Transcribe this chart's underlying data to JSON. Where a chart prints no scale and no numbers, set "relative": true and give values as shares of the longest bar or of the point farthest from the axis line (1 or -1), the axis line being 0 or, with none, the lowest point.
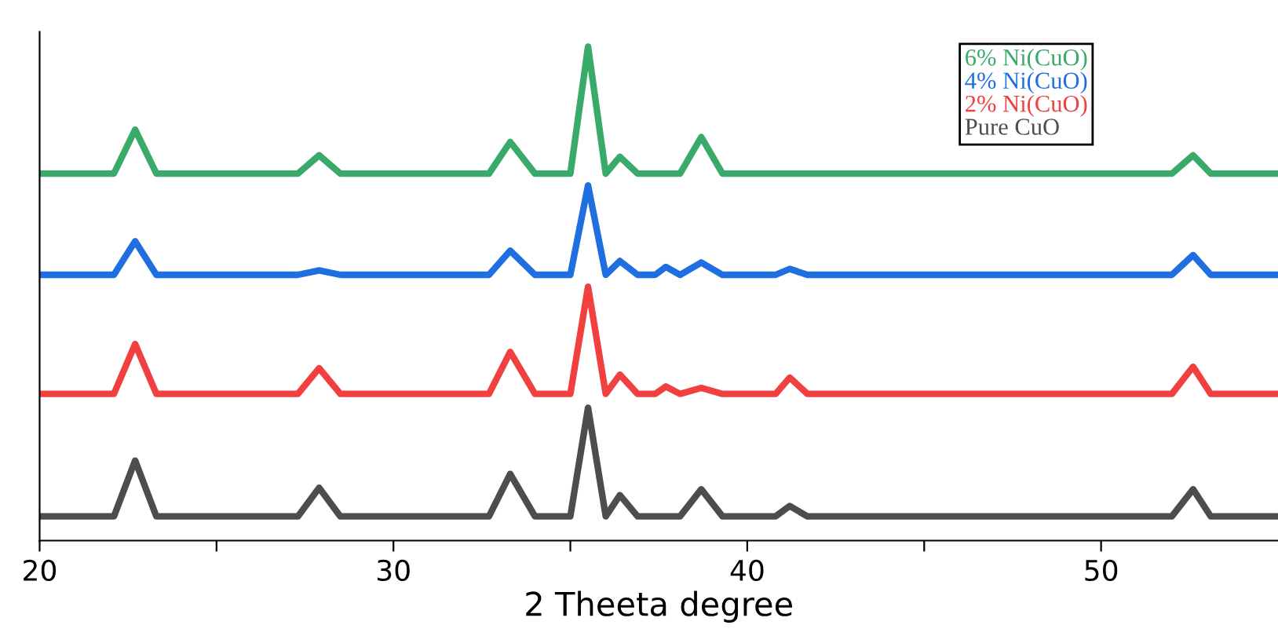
{
  "chart_data": {
    "type": "line",
    "xlabel": "2 Theeta degree",
    "relative": true,
    "x": [
      20,
      22.1,
      22.7,
      23.3,
      27.3,
      27.9,
      28.5,
      32.7,
      33.3,
      34.0,
      35.0,
      35.5,
      36.0,
      36.4,
      36.9,
      37.4,
      37.7,
      38.1,
      38.7,
      39.3,
      40.8,
      41.2,
      41.7,
      52.0,
      52.6,
      53.1,
      55
    ],
    "xlim": [
      20,
      55
    ],
    "xticks": [
      20,
      {
        "value": 25,
        "label": null
      },
      30,
      {
        "value": 35,
        "label": null
      },
      40,
      {
        "value": 45,
        "label": null
      },
      50
    ],
    "series": [
      {
        "name": "Pure CuO",
        "color": "#4d4d4d",
        "values": [
          0.049,
          0.049,
          0.162,
          0.049,
          0.049,
          0.107,
          0.049,
          0.049,
          0.135,
          0.049,
          0.049,
          0.269,
          0.049,
          0.092,
          0.049,
          0.049,
          0.049,
          0.049,
          0.104,
          0.049,
          0.049,
          0.07,
          0.049,
          0.049,
          0.104,
          0.049,
          0.049
        ]
      },
      {
        "name": "2% Ni(CuO)",
        "color": "#f04040",
        "values": [
          0.297,
          0.297,
          0.398,
          0.297,
          0.297,
          0.349,
          0.297,
          0.297,
          0.382,
          0.297,
          0.297,
          0.514,
          0.297,
          0.336,
          0.297,
          0.297,
          0.312,
          0.297,
          0.309,
          0.297,
          0.297,
          0.33,
          0.297,
          0.297,
          0.352,
          0.297,
          0.297
        ]
      },
      {
        "name": "4% Ni(CuO)",
        "color": "#1f6fe0",
        "values": [
          0.538,
          0.538,
          0.606,
          0.538,
          0.538,
          0.547,
          0.538,
          0.538,
          0.587,
          0.538,
          0.538,
          0.719,
          0.538,
          0.566,
          0.538,
          0.538,
          0.554,
          0.538,
          0.563,
          0.538,
          0.538,
          0.55,
          0.538,
          0.538,
          0.578,
          0.538,
          0.538
        ]
      },
      {
        "name": "6% Ni(CuO)",
        "color": "#3aaa6a",
        "values": [
          0.743,
          0.743,
          0.832,
          0.743,
          0.743,
          0.78,
          0.743,
          0.743,
          0.807,
          0.743,
          0.743,
          1.0,
          0.743,
          0.777,
          0.743,
          0.743,
          0.743,
          0.743,
          0.817,
          0.743,
          0.743,
          0.743,
          0.743,
          0.743,
          0.78,
          0.743,
          0.743
        ]
      }
    ],
    "legend": "top right",
    "grid": false
  }
}
